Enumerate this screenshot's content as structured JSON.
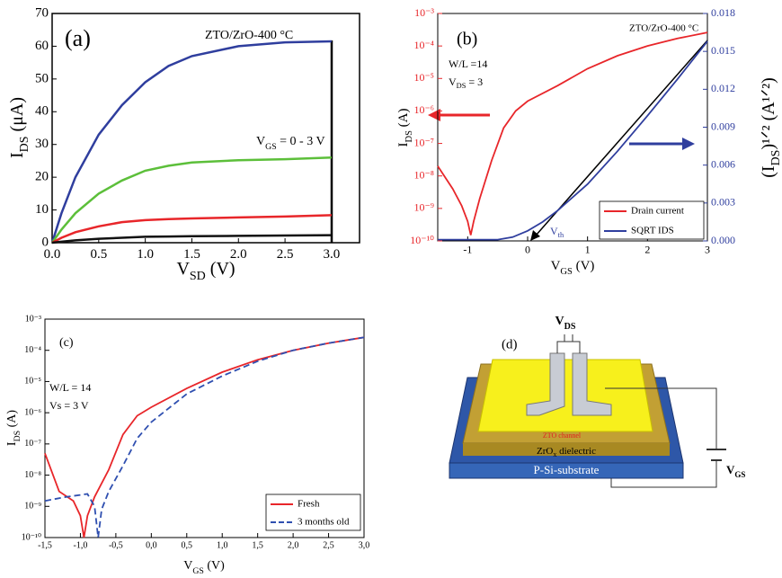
{
  "chart_data": [
    {
      "type": "line",
      "annotations": [
        "(a)",
        "ZTO/ZrO-400 °C",
        [
          "V",
          "GS",
          " = 0 - 3 V"
        ]
      ],
      "xlabel": [
        "V",
        "SD",
        " (V)"
      ],
      "ylabel": [
        "I",
        "DS",
        " (μA)"
      ],
      "x": [
        0,
        0.1,
        0.25,
        0.5,
        0.75,
        1.0,
        1.25,
        1.5,
        2.0,
        2.5,
        3.0
      ],
      "series": [
        {
          "color": "#2f3e9e",
          "values": [
            0,
            9,
            20,
            33,
            42,
            49,
            54,
            57,
            60,
            61.2,
            61.5
          ]
        },
        {
          "color": "#5cbf3a",
          "values": [
            0,
            4,
            9,
            15,
            19,
            22,
            23.5,
            24.5,
            25.2,
            25.5,
            26
          ]
        },
        {
          "color": "#e8262a",
          "values": [
            0,
            1.5,
            3.2,
            5,
            6.3,
            6.9,
            7.2,
            7.4,
            7.7,
            8,
            8.4
          ]
        },
        {
          "color": "#111111",
          "values": [
            0,
            0.3,
            0.7,
            1.2,
            1.5,
            1.8,
            1.9,
            2,
            2.1,
            2.2,
            2.3
          ]
        }
      ],
      "xlim": [
        0,
        3.3
      ],
      "xticks": [
        {
          "value": 0,
          "label": "0.0"
        },
        0.5,
        {
          "value": 1,
          "label": "1.0"
        },
        1.5,
        {
          "value": 2,
          "label": "2.0"
        },
        2.5,
        {
          "value": 3,
          "label": "3.0"
        }
      ],
      "ylim": [
        0,
        70
      ],
      "yticks": [
        0,
        10,
        20,
        30,
        40,
        50,
        60,
        70
      ]
    },
    {
      "type": "line",
      "annotations": [
        "(b)",
        "ZTO/ZrO-400 °C",
        "W/L =14",
        [
          "V",
          "DS",
          " = 3"
        ],
        [
          "V",
          "th"
        ]
      ],
      "xlabel": [
        "V",
        "GS",
        " (V)"
      ],
      "ylabel": [
        "I",
        "DS",
        " (A)"
      ],
      "y2label": [
        "(I",
        "DS",
        ")¹ᐟ² (A¹ᐟ²)"
      ],
      "series": [
        {
          "name": "Drain current",
          "color": "#e8262a",
          "x": [
            -1.5,
            -1.25,
            -1.1,
            -1.0,
            -0.95,
            -0.9,
            -0.8,
            -0.6,
            -0.4,
            -0.2,
            0,
            0.5,
            1,
            1.5,
            2,
            2.5,
            3
          ],
          "values": [
            2e-08,
            4e-09,
            1.2e-09,
            4e-10,
            1.5e-10,
            4e-10,
            2e-09,
            3e-08,
            3e-07,
            1e-06,
            2e-06,
            6e-06,
            2e-05,
            5e-05,
            0.0001,
            0.00017,
            0.00026
          ]
        },
        {
          "name": "SQRT IDS",
          "color": "#2f3e9e",
          "axis": "y2",
          "x": [
            -1.5,
            -1,
            -0.5,
            -0.25,
            0,
            0.25,
            0.5,
            1,
            1.5,
            2,
            2.5,
            3
          ],
          "values": [
            0.0001,
            0.0001,
            0.0001,
            0.0003,
            0.0008,
            0.0015,
            0.0024,
            0.0045,
            0.0071,
            0.0099,
            0.0128,
            0.0158
          ]
        }
      ],
      "xlim": [
        -1.5,
        3
      ],
      "xticks": [
        -1,
        0,
        1,
        2,
        3
      ],
      "ylog": true,
      "ylim": [
        1e-10,
        0.001
      ],
      "yticks": [
        {
          "value": 0.001,
          "label": "10⁻³"
        },
        {
          "value": 0.0001,
          "label": "10⁻⁴"
        },
        {
          "value": 1e-05,
          "label": "10⁻⁵"
        },
        {
          "value": 1e-06,
          "label": "10⁻⁶"
        },
        {
          "value": 1e-07,
          "label": "10⁻⁷"
        },
        {
          "value": 1e-08,
          "label": "10⁻⁸"
        },
        {
          "value": 1e-09,
          "label": "10⁻⁹"
        },
        {
          "value": 1e-10,
          "label": "10⁻¹⁰"
        }
      ],
      "y2lim": [
        0,
        0.018
      ],
      "y2ticks": [
        {
          "value": 0,
          "label": "0.000"
        },
        {
          "value": 0.003,
          "label": "0.003"
        },
        {
          "value": 0.006,
          "label": "0.006"
        },
        {
          "value": 0.009,
          "label": "0.009"
        },
        {
          "value": 0.012,
          "label": "0.012"
        },
        {
          "value": 0.015,
          "label": "0.015"
        },
        {
          "value": 0.018,
          "label": "0.018"
        }
      ],
      "legend": "lower right"
    },
    {
      "type": "line",
      "annotations": [
        "(c)",
        "W/L = 14",
        "Vs = 3 V"
      ],
      "xlabel": [
        "V",
        "GS",
        " (V)"
      ],
      "ylabel": [
        "I",
        "DS",
        " (A)"
      ],
      "series": [
        {
          "name": "Fresh",
          "color": "#e8262a",
          "x": [
            -1.5,
            -1.3,
            -1.1,
            -1.0,
            -0.95,
            -0.9,
            -0.8,
            -0.6,
            -0.4,
            -0.2,
            0,
            0.5,
            1,
            1.5,
            2,
            2.5,
            3
          ],
          "values": [
            5e-08,
            3e-09,
            1.5e-09,
            5e-10,
            1e-10,
            5e-10,
            2e-09,
            1.5e-08,
            2e-07,
            8e-07,
            1.5e-06,
            6e-06,
            2e-05,
            5e-05,
            0.0001,
            0.00017,
            0.00026
          ]
        },
        {
          "name": "3 months old",
          "color": "#2f4fb0",
          "dash": true,
          "x": [
            -1.5,
            -1.2,
            -0.9,
            -0.8,
            -0.75,
            -0.7,
            -0.6,
            -0.4,
            -0.2,
            0,
            0.5,
            1,
            1.5,
            2,
            2.5,
            3
          ],
          "values": [
            1.5e-09,
            2e-09,
            2.5e-09,
            1e-09,
            1e-10,
            8e-10,
            3e-09,
            2e-08,
            1.5e-07,
            5e-07,
            4e-06,
            1.5e-05,
            4.5e-05,
            0.0001,
            0.00017,
            0.00026
          ]
        }
      ],
      "xlim": [
        -1.5,
        3
      ],
      "xticks": [
        {
          "value": -1.5,
          "label": "-1,5"
        },
        {
          "value": -1,
          "label": "-1,0"
        },
        {
          "value": -0.5,
          "label": "-0,5"
        },
        {
          "value": 0,
          "label": "0,0"
        },
        {
          "value": 0.5,
          "label": "0,5"
        },
        {
          "value": 1,
          "label": "1,0"
        },
        {
          "value": 1.5,
          "label": "1,5"
        },
        {
          "value": 2,
          "label": "2,0"
        },
        {
          "value": 2.5,
          "label": "2,5"
        },
        {
          "value": 3,
          "label": "3,0"
        }
      ],
      "ylog": true,
      "ylim": [
        1e-10,
        0.001
      ],
      "yticks": [
        {
          "value": 0.001,
          "label": "10⁻³"
        },
        {
          "value": 0.0001,
          "label": "10⁻⁴"
        },
        {
          "value": 1e-05,
          "label": "10⁻⁵"
        },
        {
          "value": 1e-06,
          "label": "10⁻⁶"
        },
        {
          "value": 1e-07,
          "label": "10⁻⁷"
        },
        {
          "value": 1e-08,
          "label": "10⁻⁸"
        },
        {
          "value": 1e-09,
          "label": "10⁻⁹"
        },
        {
          "value": 1e-10,
          "label": "10⁻¹⁰"
        }
      ],
      "legend": "lower right"
    }
  ],
  "diagram": {
    "label": "(d)",
    "vds": [
      "V",
      "DS"
    ],
    "channel": "ZTO channel",
    "dielectric": [
      "ZrO",
      "x",
      " dielectric"
    ],
    "substrate": "P-Si-substrate",
    "vgs": [
      "V",
      "GS"
    ]
  }
}
